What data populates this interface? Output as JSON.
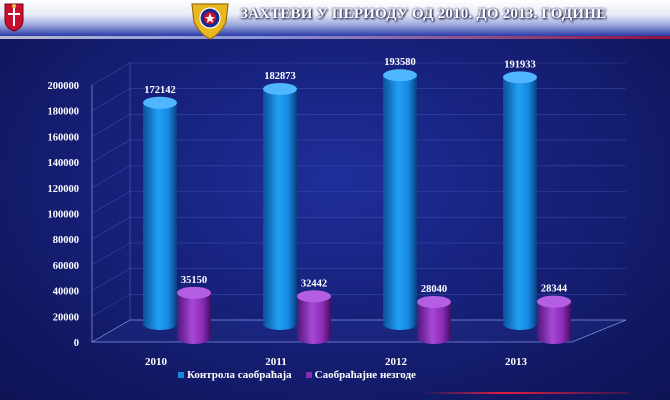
{
  "header": {
    "title": "ЗАХТЕВИ У ПЕРИОДУ ОД 2010. ДО 2013. ГОДИНЕ",
    "left_emblem_icon": "serbia-coat-of-arms-icon",
    "center_emblem_icon": "police-badge-icon"
  },
  "colors": {
    "series1": "#1687e0",
    "series2": "#8a2bb5",
    "background": "#17217a"
  },
  "chart_data": {
    "type": "bar",
    "style": "3d-cylinder",
    "categories": [
      "2010",
      "2011",
      "2012",
      "2013"
    ],
    "series": [
      {
        "name": "Контрола саобраћаја",
        "values": [
          172142,
          182873,
          193580,
          191933
        ]
      },
      {
        "name": "Саобраћајне незгоде",
        "values": [
          35150,
          32442,
          28040,
          28344
        ]
      }
    ],
    "data_labels": [
      [
        "172142",
        "182873",
        "193580",
        "191933"
      ],
      [
        "35150",
        "32442",
        "28040",
        "28344"
      ]
    ],
    "ylim": [
      0,
      200000
    ],
    "yticks": [
      "0",
      "20000",
      "40000",
      "60000",
      "80000",
      "100000",
      "120000",
      "140000",
      "160000",
      "180000",
      "200000"
    ],
    "grid": true,
    "legend_position": "bottom",
    "title": "",
    "xlabel": "",
    "ylabel": ""
  }
}
